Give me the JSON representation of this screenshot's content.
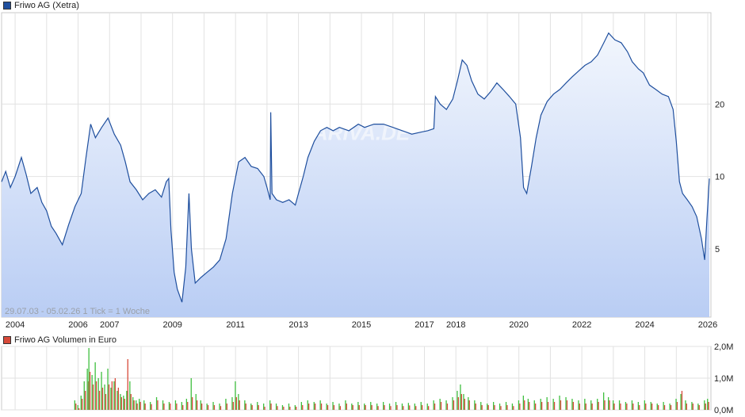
{
  "chart_data": [
    {
      "type": "line",
      "title": "Friwo AG (Xetra)",
      "series_color": "#1f4f9e",
      "fill_top": "#f2f6fd",
      "fill_bottom": "#b9cdf4",
      "y_scale": "log",
      "ylim": [
        2.6,
        48
      ],
      "xlim": [
        2003.57,
        2026.1
      ],
      "y_ticks": [
        {
          "v": 5,
          "label": "5"
        },
        {
          "v": 10,
          "label": "10"
        },
        {
          "v": 20,
          "label": "20"
        }
      ],
      "x_ticks": [
        {
          "v": 2004,
          "label": "2004"
        },
        {
          "v": 2006,
          "label": "2006"
        },
        {
          "v": 2007,
          "label": "2007"
        },
        {
          "v": 2009,
          "label": "2009"
        },
        {
          "v": 2011,
          "label": "2011"
        },
        {
          "v": 2013,
          "label": "2013"
        },
        {
          "v": 2015,
          "label": "2015"
        },
        {
          "v": 2017,
          "label": "2017"
        },
        {
          "v": 2018,
          "label": "2018"
        },
        {
          "v": 2020,
          "label": "2020"
        },
        {
          "v": 2022,
          "label": "2022"
        },
        {
          "v": 2024,
          "label": "2024"
        },
        {
          "v": 2026,
          "label": "2026"
        }
      ],
      "range_note": "29.07.03 - 05.02.26   1 Tick = 1 Woche",
      "watermark": "ARIVA.DE",
      "grid": true,
      "points": [
        [
          2003.57,
          9.5
        ],
        [
          2003.7,
          10.5
        ],
        [
          2003.85,
          9.0
        ],
        [
          2004.0,
          10.0
        ],
        [
          2004.2,
          12.0
        ],
        [
          2004.35,
          10.2
        ],
        [
          2004.5,
          8.5
        ],
        [
          2004.7,
          9.0
        ],
        [
          2004.85,
          7.8
        ],
        [
          2005.0,
          7.2
        ],
        [
          2005.15,
          6.2
        ],
        [
          2005.3,
          5.8
        ],
        [
          2005.5,
          5.2
        ],
        [
          2005.7,
          6.3
        ],
        [
          2005.9,
          7.5
        ],
        [
          2006.1,
          8.5
        ],
        [
          2006.25,
          12.0
        ],
        [
          2006.4,
          16.5
        ],
        [
          2006.55,
          14.5
        ],
        [
          2006.75,
          16.0
        ],
        [
          2006.95,
          17.5
        ],
        [
          2007.15,
          15.0
        ],
        [
          2007.35,
          13.5
        ],
        [
          2007.5,
          11.5
        ],
        [
          2007.65,
          9.5
        ],
        [
          2007.85,
          8.8
        ],
        [
          2008.05,
          8.0
        ],
        [
          2008.25,
          8.5
        ],
        [
          2008.45,
          8.8
        ],
        [
          2008.65,
          8.2
        ],
        [
          2008.8,
          9.5
        ],
        [
          2008.88,
          9.8
        ],
        [
          2008.95,
          6.0
        ],
        [
          2009.05,
          4.0
        ],
        [
          2009.15,
          3.4
        ],
        [
          2009.3,
          3.0
        ],
        [
          2009.42,
          4.2
        ],
        [
          2009.52,
          8.5
        ],
        [
          2009.6,
          5.0
        ],
        [
          2009.72,
          3.6
        ],
        [
          2009.9,
          3.8
        ],
        [
          2010.1,
          4.0
        ],
        [
          2010.3,
          4.2
        ],
        [
          2010.5,
          4.5
        ],
        [
          2010.7,
          5.5
        ],
        [
          2010.9,
          8.5
        ],
        [
          2011.1,
          11.5
        ],
        [
          2011.3,
          12.0
        ],
        [
          2011.5,
          11.0
        ],
        [
          2011.7,
          10.8
        ],
        [
          2011.9,
          10.0
        ],
        [
          2012.0,
          9.0
        ],
        [
          2012.1,
          8.0
        ],
        [
          2012.12,
          18.5
        ],
        [
          2012.16,
          8.5
        ],
        [
          2012.3,
          8.0
        ],
        [
          2012.5,
          7.8
        ],
        [
          2012.7,
          8.0
        ],
        [
          2012.9,
          7.6
        ],
        [
          2013.0,
          8.5
        ],
        [
          2013.15,
          10.0
        ],
        [
          2013.3,
          12.0
        ],
        [
          2013.5,
          14.0
        ],
        [
          2013.7,
          15.5
        ],
        [
          2013.9,
          16.0
        ],
        [
          2014.1,
          15.5
        ],
        [
          2014.3,
          16.0
        ],
        [
          2014.6,
          15.5
        ],
        [
          2014.9,
          16.5
        ],
        [
          2015.1,
          16.0
        ],
        [
          2015.4,
          16.5
        ],
        [
          2015.7,
          16.5
        ],
        [
          2016.0,
          16.0
        ],
        [
          2016.3,
          15.5
        ],
        [
          2016.6,
          15.0
        ],
        [
          2016.9,
          15.3
        ],
        [
          2017.1,
          15.5
        ],
        [
          2017.3,
          15.8
        ],
        [
          2017.35,
          21.5
        ],
        [
          2017.5,
          20.0
        ],
        [
          2017.7,
          19.0
        ],
        [
          2017.9,
          21.0
        ],
        [
          2018.05,
          25.0
        ],
        [
          2018.2,
          30.5
        ],
        [
          2018.35,
          29.0
        ],
        [
          2018.5,
          25.0
        ],
        [
          2018.7,
          22.0
        ],
        [
          2018.9,
          21.0
        ],
        [
          2019.1,
          22.5
        ],
        [
          2019.3,
          24.5
        ],
        [
          2019.5,
          23.0
        ],
        [
          2019.7,
          21.5
        ],
        [
          2019.9,
          20.0
        ],
        [
          2020.05,
          14.5
        ],
        [
          2020.15,
          9.0
        ],
        [
          2020.25,
          8.5
        ],
        [
          2020.4,
          11.0
        ],
        [
          2020.55,
          14.5
        ],
        [
          2020.7,
          18.0
        ],
        [
          2020.9,
          20.5
        ],
        [
          2021.1,
          22.0
        ],
        [
          2021.3,
          23.0
        ],
        [
          2021.5,
          24.5
        ],
        [
          2021.7,
          26.0
        ],
        [
          2021.9,
          27.5
        ],
        [
          2022.1,
          29.0
        ],
        [
          2022.3,
          30.0
        ],
        [
          2022.5,
          32.0
        ],
        [
          2022.7,
          36.0
        ],
        [
          2022.85,
          39.5
        ],
        [
          2023.05,
          37.0
        ],
        [
          2023.25,
          36.0
        ],
        [
          2023.45,
          33.0
        ],
        [
          2023.6,
          30.0
        ],
        [
          2023.8,
          28.0
        ],
        [
          2023.95,
          27.0
        ],
        [
          2024.15,
          24.0
        ],
        [
          2024.35,
          23.0
        ],
        [
          2024.55,
          22.0
        ],
        [
          2024.75,
          21.5
        ],
        [
          2024.9,
          19.0
        ],
        [
          2025.0,
          14.0
        ],
        [
          2025.1,
          9.5
        ],
        [
          2025.2,
          8.5
        ],
        [
          2025.35,
          8.0
        ],
        [
          2025.5,
          7.5
        ],
        [
          2025.65,
          6.8
        ],
        [
          2025.8,
          5.5
        ],
        [
          2025.9,
          4.5
        ],
        [
          2025.97,
          6.5
        ],
        [
          2026.05,
          9.8
        ]
      ]
    },
    {
      "type": "bar",
      "title": "Friwo AG Volumen in Euro",
      "series_color": "#3fbf3f",
      "series_color_2": "#d84a3a",
      "ylim": [
        0,
        2.0
      ],
      "y_ticks": [
        {
          "v": 0,
          "label": "0,0M"
        },
        {
          "v": 1.0,
          "label": "1,0M"
        },
        {
          "v": 2.0,
          "label": "2,0M"
        }
      ],
      "grid": true,
      "bars": [
        [
          2005.9,
          0.3,
          0.2
        ],
        [
          2006.0,
          0.15,
          0.05
        ],
        [
          2006.1,
          0.45,
          0.35
        ],
        [
          2006.2,
          0.9,
          0.6
        ],
        [
          2006.3,
          1.3,
          0.9
        ],
        [
          2006.35,
          1.95,
          1.2
        ],
        [
          2006.45,
          1.1,
          0.8
        ],
        [
          2006.55,
          1.5,
          0.9
        ],
        [
          2006.65,
          1.0,
          0.6
        ],
        [
          2006.75,
          1.2,
          0.7
        ],
        [
          2006.85,
          0.8,
          0.5
        ],
        [
          2006.95,
          1.3,
          0.8
        ],
        [
          2007.05,
          0.7,
          0.9
        ],
        [
          2007.15,
          0.9,
          1.0
        ],
        [
          2007.25,
          0.6,
          0.7
        ],
        [
          2007.35,
          0.5,
          0.4
        ],
        [
          2007.45,
          0.45,
          0.35
        ],
        [
          2007.55,
          0.6,
          1.6
        ],
        [
          2007.65,
          0.9,
          0.5
        ],
        [
          2007.75,
          0.4,
          0.3
        ],
        [
          2007.85,
          0.3,
          0.2
        ],
        [
          2007.95,
          0.35,
          0.25
        ],
        [
          2008.1,
          0.3,
          0.2
        ],
        [
          2008.3,
          0.25,
          0.18
        ],
        [
          2008.5,
          0.4,
          0.3
        ],
        [
          2008.7,
          0.3,
          0.2
        ],
        [
          2008.9,
          0.25,
          0.2
        ],
        [
          2009.1,
          0.3,
          0.2
        ],
        [
          2009.3,
          0.25,
          0.15
        ],
        [
          2009.45,
          0.35,
          0.25
        ],
        [
          2009.6,
          1.0,
          0.4
        ],
        [
          2009.75,
          0.5,
          0.3
        ],
        [
          2009.9,
          0.3,
          0.2
        ],
        [
          2010.1,
          0.2,
          0.15
        ],
        [
          2010.3,
          0.25,
          0.15
        ],
        [
          2010.5,
          0.2,
          0.12
        ],
        [
          2010.7,
          0.35,
          0.2
        ],
        [
          2010.9,
          0.4,
          0.25
        ],
        [
          2011.0,
          0.9,
          0.4
        ],
        [
          2011.1,
          0.5,
          0.3
        ],
        [
          2011.3,
          0.3,
          0.2
        ],
        [
          2011.5,
          0.2,
          0.15
        ],
        [
          2011.7,
          0.25,
          0.15
        ],
        [
          2011.9,
          0.2,
          0.1
        ],
        [
          2012.1,
          0.3,
          0.2
        ],
        [
          2012.3,
          0.2,
          0.12
        ],
        [
          2012.5,
          0.15,
          0.1
        ],
        [
          2012.7,
          0.2,
          0.1
        ],
        [
          2012.9,
          0.15,
          0.1
        ],
        [
          2013.1,
          0.25,
          0.15
        ],
        [
          2013.3,
          0.3,
          0.2
        ],
        [
          2013.5,
          0.25,
          0.2
        ],
        [
          2013.7,
          0.3,
          0.2
        ],
        [
          2013.9,
          0.2,
          0.15
        ],
        [
          2014.1,
          0.25,
          0.15
        ],
        [
          2014.3,
          0.2,
          0.12
        ],
        [
          2014.5,
          0.3,
          0.2
        ],
        [
          2014.7,
          0.2,
          0.15
        ],
        [
          2014.9,
          0.25,
          0.15
        ],
        [
          2015.1,
          0.2,
          0.15
        ],
        [
          2015.3,
          0.25,
          0.15
        ],
        [
          2015.5,
          0.2,
          0.12
        ],
        [
          2015.7,
          0.25,
          0.15
        ],
        [
          2015.9,
          0.2,
          0.12
        ],
        [
          2016.1,
          0.25,
          0.15
        ],
        [
          2016.3,
          0.2,
          0.12
        ],
        [
          2016.5,
          0.22,
          0.14
        ],
        [
          2016.7,
          0.2,
          0.12
        ],
        [
          2016.9,
          0.25,
          0.15
        ],
        [
          2017.1,
          0.2,
          0.12
        ],
        [
          2017.3,
          0.3,
          0.2
        ],
        [
          2017.5,
          0.35,
          0.25
        ],
        [
          2017.7,
          0.3,
          0.2
        ],
        [
          2017.9,
          0.4,
          0.3
        ],
        [
          2018.05,
          0.6,
          0.4
        ],
        [
          2018.15,
          0.8,
          0.5
        ],
        [
          2018.25,
          0.5,
          0.35
        ],
        [
          2018.4,
          0.4,
          0.3
        ],
        [
          2018.6,
          0.3,
          0.2
        ],
        [
          2018.8,
          0.25,
          0.15
        ],
        [
          2019.0,
          0.2,
          0.15
        ],
        [
          2019.2,
          0.25,
          0.15
        ],
        [
          2019.4,
          0.2,
          0.12
        ],
        [
          2019.6,
          0.25,
          0.15
        ],
        [
          2019.8,
          0.2,
          0.12
        ],
        [
          2020.0,
          0.3,
          0.2
        ],
        [
          2020.15,
          0.45,
          0.3
        ],
        [
          2020.3,
          0.35,
          0.25
        ],
        [
          2020.5,
          0.3,
          0.2
        ],
        [
          2020.7,
          0.35,
          0.25
        ],
        [
          2020.9,
          0.4,
          0.25
        ],
        [
          2021.1,
          0.35,
          0.25
        ],
        [
          2021.3,
          0.45,
          0.3
        ],
        [
          2021.5,
          0.4,
          0.3
        ],
        [
          2021.7,
          0.35,
          0.25
        ],
        [
          2021.9,
          0.3,
          0.2
        ],
        [
          2022.1,
          0.35,
          0.2
        ],
        [
          2022.3,
          0.3,
          0.2
        ],
        [
          2022.5,
          0.35,
          0.25
        ],
        [
          2022.7,
          0.55,
          0.3
        ],
        [
          2022.85,
          0.4,
          0.3
        ],
        [
          2023.0,
          0.3,
          0.2
        ],
        [
          2023.2,
          0.3,
          0.2
        ],
        [
          2023.4,
          0.25,
          0.2
        ],
        [
          2023.6,
          0.3,
          0.2
        ],
        [
          2023.8,
          0.25,
          0.15
        ],
        [
          2024.0,
          0.3,
          0.2
        ],
        [
          2024.2,
          0.25,
          0.2
        ],
        [
          2024.4,
          0.2,
          0.15
        ],
        [
          2024.6,
          0.25,
          0.15
        ],
        [
          2024.8,
          0.2,
          0.15
        ],
        [
          2025.0,
          0.35,
          0.25
        ],
        [
          2025.15,
          0.5,
          0.6
        ],
        [
          2025.3,
          0.3,
          0.2
        ],
        [
          2025.5,
          0.25,
          0.2
        ],
        [
          2025.7,
          0.2,
          0.15
        ],
        [
          2025.9,
          0.3,
          0.2
        ],
        [
          2026.0,
          0.35,
          0.25
        ]
      ]
    }
  ]
}
